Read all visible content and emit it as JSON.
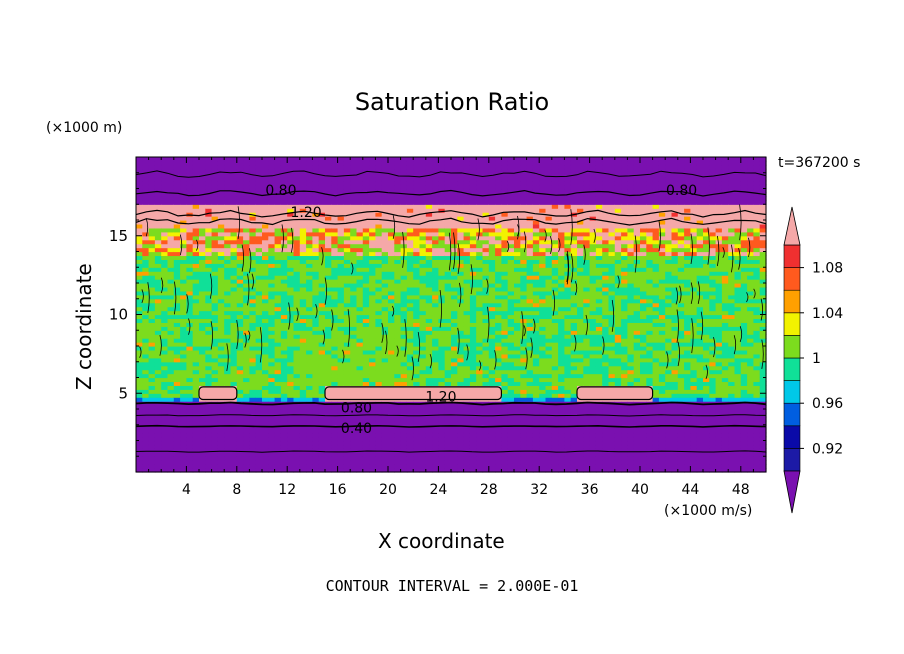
{
  "chart_data": {
    "type": "heatmap",
    "title": "Saturation Ratio",
    "xlabel": "X coordinate",
    "ylabel": "Z coordinate",
    "x_unit": "(×1000 m/s)",
    "y_unit": "(×1000 m)",
    "time_label": "t=367200 s",
    "footer": "CONTOUR INTERVAL = 2.000E-01",
    "xlim": [
      0,
      50
    ],
    "ylim": [
      0,
      20
    ],
    "x_ticks": [
      4,
      8,
      12,
      16,
      20,
      24,
      28,
      32,
      36,
      40,
      44,
      48
    ],
    "y_ticks": [
      5,
      10,
      15
    ],
    "colorbar": {
      "labels": [
        {
          "text": "1.08",
          "value": 1.08
        },
        {
          "text": "1.04",
          "value": 1.04
        },
        {
          "text": "1",
          "value": 1.0
        },
        {
          "text": "0.96",
          "value": 0.96
        },
        {
          "text": "0.92",
          "value": 0.92
        }
      ],
      "levels": [
        {
          "min": 0.9,
          "max": 0.92,
          "color": "#1c1aa6"
        },
        {
          "min": 0.92,
          "max": 0.94,
          "color": "#0a0aa8"
        },
        {
          "min": 0.94,
          "max": 0.96,
          "color": "#005ee0"
        },
        {
          "min": 0.96,
          "max": 0.98,
          "color": "#00c8e8"
        },
        {
          "min": 0.98,
          "max": 1.0,
          "color": "#10e098"
        },
        {
          "min": 1.0,
          "max": 1.02,
          "color": "#7cdc1e"
        },
        {
          "min": 1.02,
          "max": 1.04,
          "color": "#f2f200"
        },
        {
          "min": 1.04,
          "max": 1.06,
          "color": "#ffa000"
        },
        {
          "min": 1.06,
          "max": 1.08,
          "color": "#ff5a1e"
        },
        {
          "min": 1.08,
          "max": 1.1,
          "color": "#f03030"
        }
      ],
      "under_color": "#7a10b0",
      "over_color": "#f5a8a8"
    },
    "contour_labels": [
      {
        "text": "0.80",
        "x": 11.5,
        "z": 17.9
      },
      {
        "text": "0.80",
        "x": 43.3,
        "z": 17.9
      },
      {
        "text": "1.20",
        "x": 13.5,
        "z": 16.5
      },
      {
        "text": "1.20",
        "x": 24.2,
        "z": 4.8
      },
      {
        "text": "0.80",
        "x": 17.5,
        "z": 4.1
      },
      {
        "text": "0.40",
        "x": 17.5,
        "z": 2.8
      }
    ],
    "regions": [
      {
        "name": "upper dry layer",
        "z_range": [
          17.0,
          20.0
        ],
        "value": "< 0.90"
      },
      {
        "name": "supersaturated band",
        "z_range": [
          15.5,
          17.0
        ],
        "value": "> 1.10"
      },
      {
        "name": "mixed cloud layer",
        "z_range": [
          4.5,
          15.5
        ],
        "value": "0.98 - 1.02"
      },
      {
        "name": "lower supersaturated pockets",
        "x_ranges": [
          [
            5,
            8
          ],
          [
            15,
            29
          ],
          [
            35,
            41
          ]
        ],
        "z_range": [
          4.6,
          5.4
        ],
        "value": "> 1.10"
      },
      {
        "name": "lower dry layer",
        "z_range": [
          0,
          4.5
        ],
        "value": "< 0.90"
      }
    ]
  }
}
